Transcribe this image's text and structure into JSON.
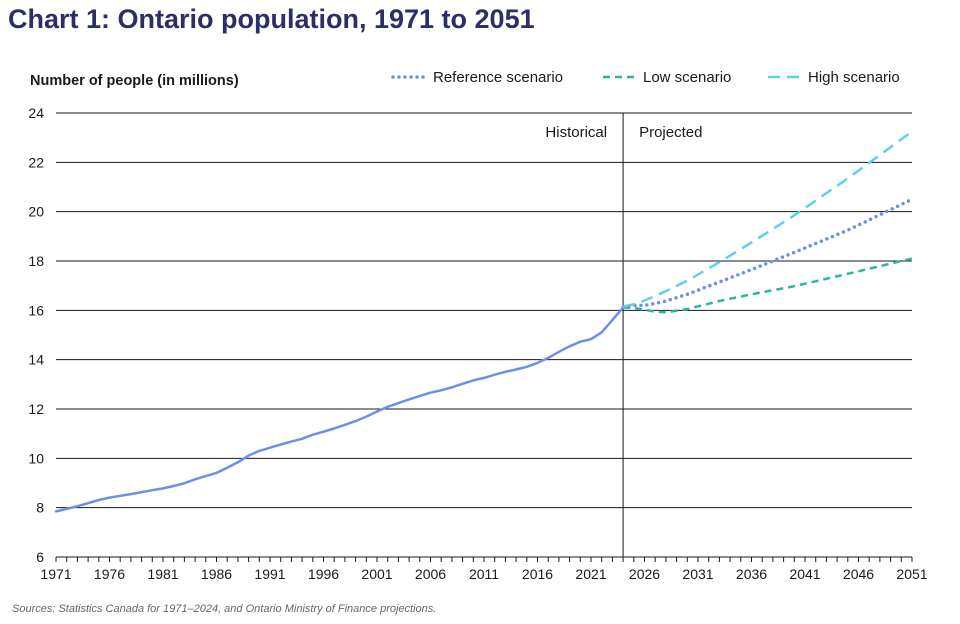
{
  "title": "Chart 1: Ontario population, 1971 to 2051",
  "source": "Sources: Statistics Canada for 1971–2024, and Ontario Ministry of Finance projections.",
  "chart_data": {
    "type": "line",
    "ylabel": "Number of people (in millions)",
    "xlabel": "",
    "xlim": [
      1971,
      2051
    ],
    "ylim": [
      6,
      24
    ],
    "yticks": [
      6,
      8,
      10,
      12,
      14,
      16,
      18,
      20,
      22,
      24
    ],
    "xticks": [
      1971,
      1976,
      1981,
      1986,
      1991,
      1996,
      2001,
      2006,
      2011,
      2016,
      2021,
      2026,
      2031,
      2036,
      2041,
      2046,
      2051
    ],
    "grid": "horizontal",
    "legend_position": "top-right",
    "divider": {
      "x": 2024,
      "left_label": "Historical",
      "right_label": "Projected"
    },
    "colors": {
      "historical": "#6d8fe8",
      "reference": "#6d8fe8",
      "low": "#2bb5a0",
      "high": "#5fd0ec",
      "title": "#2b2f66"
    },
    "series": [
      {
        "name": "Historical",
        "style": "solid",
        "show_in_legend": false,
        "x": [
          1971,
          1972,
          1973,
          1974,
          1975,
          1976,
          1977,
          1978,
          1979,
          1980,
          1981,
          1982,
          1983,
          1984,
          1985,
          1986,
          1987,
          1988,
          1989,
          1990,
          1991,
          1992,
          1993,
          1994,
          1995,
          1996,
          1997,
          1998,
          1999,
          2000,
          2001,
          2002,
          2003,
          2004,
          2005,
          2006,
          2007,
          2008,
          2009,
          2010,
          2011,
          2012,
          2013,
          2014,
          2015,
          2016,
          2017,
          2018,
          2019,
          2020,
          2021,
          2022,
          2023,
          2024
        ],
        "values": [
          7.85,
          7.95,
          8.06,
          8.18,
          8.31,
          8.41,
          8.48,
          8.55,
          8.63,
          8.71,
          8.78,
          8.88,
          8.99,
          9.15,
          9.28,
          9.41,
          9.62,
          9.84,
          10.11,
          10.3,
          10.43,
          10.56,
          10.68,
          10.79,
          10.96,
          11.08,
          11.21,
          11.36,
          11.51,
          11.69,
          11.9,
          12.09,
          12.24,
          12.39,
          12.53,
          12.66,
          12.76,
          12.88,
          13.02,
          13.16,
          13.26,
          13.39,
          13.51,
          13.6,
          13.71,
          13.87,
          14.07,
          14.32,
          14.54,
          14.73,
          14.83,
          15.11,
          15.61,
          16.12
        ]
      },
      {
        "name": "Reference scenario",
        "style": "dotted",
        "show_in_legend": true,
        "x": [
          2024,
          2025,
          2026,
          2027,
          2028,
          2030,
          2033,
          2036,
          2040,
          2045,
          2051
        ],
        "values": [
          16.12,
          16.2,
          16.2,
          16.28,
          16.38,
          16.65,
          17.15,
          17.65,
          18.35,
          19.25,
          20.5
        ]
      },
      {
        "name": "Low scenario",
        "style": "dashed",
        "show_in_legend": true,
        "x": [
          2024,
          2025,
          2026,
          2027,
          2028,
          2030,
          2033,
          2036,
          2040,
          2045,
          2051
        ],
        "values": [
          16.12,
          16.1,
          16.02,
          15.95,
          15.92,
          16.05,
          16.38,
          16.65,
          16.98,
          17.48,
          18.1
        ]
      },
      {
        "name": "High scenario",
        "style": "long-dashed",
        "show_in_legend": true,
        "x": [
          2024,
          2025,
          2026,
          2027,
          2028,
          2030,
          2033,
          2036,
          2040,
          2045,
          2051
        ],
        "values": [
          16.15,
          16.25,
          16.4,
          16.58,
          16.78,
          17.2,
          17.95,
          18.75,
          19.85,
          21.35,
          23.25
        ]
      }
    ]
  }
}
